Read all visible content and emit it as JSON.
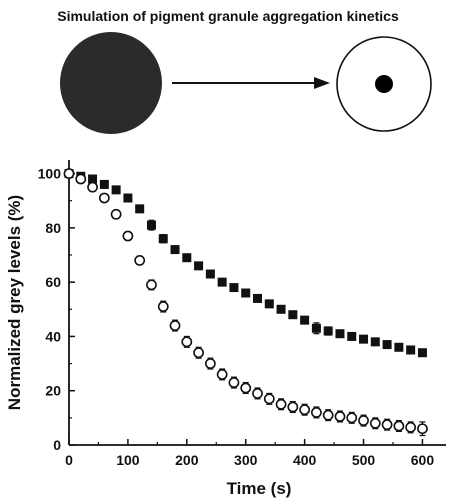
{
  "figure": {
    "title": "Simulation of pigment granule aggregation kinetics",
    "illustration": {
      "before_icon": "dispersed-granule-disc",
      "arrow_icon": "right-arrow",
      "after_icon": "aggregated-granule-cell"
    }
  },
  "chart_data": {
    "type": "scatter",
    "xlabel": "Time (s)",
    "ylabel": "Normalized grey levels (%)",
    "xlim": [
      0,
      640
    ],
    "ylim": [
      0,
      105
    ],
    "xticks": [
      0,
      100,
      200,
      300,
      400,
      500,
      600
    ],
    "yticks": [
      0,
      20,
      40,
      60,
      80,
      100
    ],
    "grid": false,
    "legend": "none",
    "series": [
      {
        "marker": "filled-square",
        "color": "#111111",
        "x": [
          0,
          20,
          40,
          60,
          80,
          100,
          120,
          140,
          160,
          180,
          200,
          220,
          240,
          260,
          280,
          300,
          320,
          340,
          360,
          380,
          400,
          420,
          440,
          460,
          480,
          500,
          520,
          540,
          560,
          580,
          600
        ],
        "y": [
          100,
          99,
          98,
          96,
          94,
          91,
          87,
          81,
          76,
          72,
          69,
          66,
          63,
          60,
          58,
          56,
          54,
          52,
          50,
          48,
          46,
          43,
          42,
          41,
          40,
          39,
          38,
          37,
          36,
          35,
          34
        ],
        "error": [
          0.5,
          0.7,
          0.7,
          0.8,
          0.8,
          1.0,
          1.2,
          1.8,
          1.5,
          1.2,
          1.0,
          1.0,
          1.0,
          1.0,
          1.0,
          1.0,
          1.0,
          1.0,
          1.0,
          1.2,
          1.2,
          2.0,
          1.5,
          1.2,
          1.2,
          1.2,
          1.0,
          1.0,
          1.0,
          1.0,
          1.0
        ]
      },
      {
        "marker": "open-circle",
        "color": "#111111",
        "x": [
          0,
          20,
          40,
          60,
          80,
          100,
          120,
          140,
          160,
          180,
          200,
          220,
          240,
          260,
          280,
          300,
          320,
          340,
          360,
          380,
          400,
          420,
          440,
          460,
          480,
          500,
          520,
          540,
          560,
          580,
          600
        ],
        "y": [
          100,
          98,
          95,
          91,
          85,
          77,
          68,
          59,
          51,
          44,
          38,
          34,
          30,
          26,
          23,
          21,
          19,
          17,
          15,
          14,
          13,
          12,
          11,
          10.5,
          10,
          9,
          8,
          7.5,
          7,
          6.5,
          6
        ],
        "error": [
          0.5,
          0.8,
          1.0,
          1.0,
          1.2,
          1.5,
          1.5,
          1.8,
          2.0,
          2.0,
          2.0,
          2.0,
          2.0,
          2.0,
          2.0,
          2.0,
          2.0,
          2.0,
          2.0,
          2.0,
          2.0,
          2.0,
          2.0,
          2.0,
          2.0,
          2.0,
          2.0,
          2.0,
          2.0,
          2.0,
          2.5
        ]
      }
    ]
  }
}
